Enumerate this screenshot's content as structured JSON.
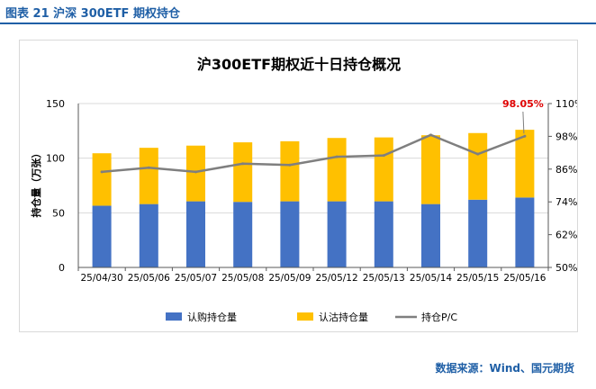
{
  "figure_label": "图表 21  沪深 300ETF 期权持仓",
  "source": "数据来源：Wind、国元期货",
  "chart_data": {
    "type": "bar",
    "title": "沪300ETF期权近十日持仓概况",
    "ylabel": "持仓量（万张）",
    "categories": [
      "25/04/30",
      "25/05/06",
      "25/05/07",
      "25/05/08",
      "25/05/09",
      "25/05/12",
      "25/05/13",
      "25/05/14",
      "25/05/15",
      "25/05/16"
    ],
    "series": [
      {
        "name": "认购持仓量",
        "type": "bar",
        "stacked": true,
        "color": "#4472c4",
        "values": [
          56.5,
          58.0,
          60.5,
          60.0,
          60.5,
          60.5,
          60.5,
          58.0,
          62.0,
          64.0
        ]
      },
      {
        "name": "认沽持仓量",
        "type": "bar",
        "stacked": true,
        "color": "#ffc000",
        "values": [
          48.0,
          51.5,
          51.0,
          54.5,
          55.0,
          58.0,
          58.5,
          63.0,
          61.0,
          62.0
        ]
      },
      {
        "name": "持仓P/C",
        "type": "line",
        "axis": "right",
        "color": "#7f7f7f",
        "values": [
          0.85,
          0.865,
          0.85,
          0.88,
          0.875,
          0.905,
          0.91,
          0.985,
          0.915,
          0.9805
        ]
      }
    ],
    "ylim": [
      0,
      150
    ],
    "yticks": [
      0,
      50,
      100,
      150
    ],
    "y2lim": [
      0.5,
      1.1
    ],
    "y2ticks": [
      "50%",
      "62%",
      "74%",
      "86%",
      "98%",
      "110%"
    ],
    "annotation": {
      "text": "98.05%",
      "index": 9,
      "color": "#e00000"
    },
    "legend_position": "bottom",
    "grid": true
  }
}
